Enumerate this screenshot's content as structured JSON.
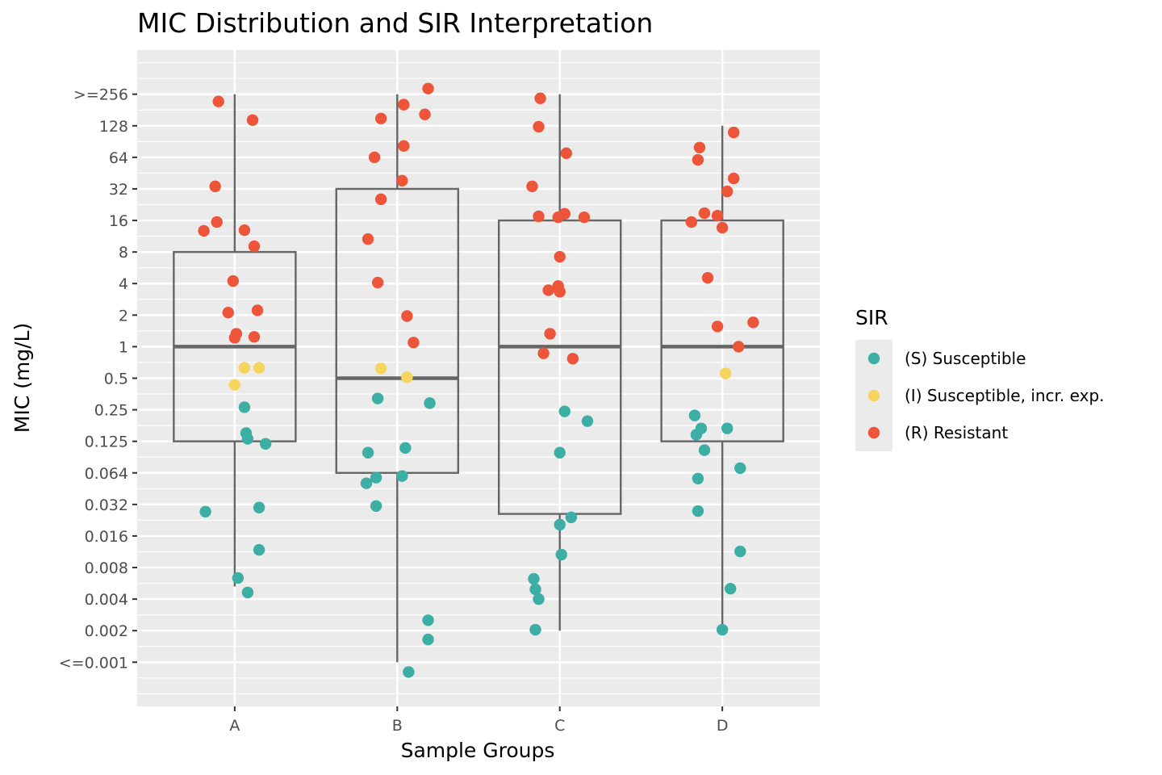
{
  "chart_data": {
    "type": "scatter",
    "subtype": "boxplot-with-jittered-points",
    "title": "MIC Distribution and SIR Interpretation",
    "xlabel": "Sample Groups",
    "ylabel": "MIC (mg/L)",
    "y_scale": "log2",
    "grid": true,
    "categories": [
      "A",
      "B",
      "C",
      "D"
    ],
    "y_ticks": [
      {
        "label": ">=256",
        "log2": 8
      },
      {
        "label": "128",
        "log2": 7
      },
      {
        "label": "64",
        "log2": 6
      },
      {
        "label": "32",
        "log2": 5
      },
      {
        "label": "16",
        "log2": 4
      },
      {
        "label": "8",
        "log2": 3
      },
      {
        "label": "4",
        "log2": 2
      },
      {
        "label": "2",
        "log2": 1
      },
      {
        "label": "1",
        "log2": 0
      },
      {
        "label": "0.5",
        "log2": -1
      },
      {
        "label": "0.25",
        "log2": -2
      },
      {
        "label": "0.125",
        "log2": -3
      },
      {
        "label": "0.064",
        "log2": -4
      },
      {
        "label": "0.032",
        "log2": -5
      },
      {
        "label": "0.016",
        "log2": -6
      },
      {
        "label": "0.008",
        "log2": -7
      },
      {
        "label": "0.004",
        "log2": -8
      },
      {
        "label": "0.002",
        "log2": -9
      },
      {
        "label": "<=0.001",
        "log2": -10
      }
    ],
    "y_range_log2": [
      -11.4,
      9.4
    ],
    "legend": {
      "title": "SIR",
      "position": "right",
      "entries": [
        {
          "key": "S",
          "label": "(S) Susceptible",
          "color": "#3CAEA3"
        },
        {
          "key": "I",
          "label": "(I) Susceptible, incr. exp.",
          "color": "#F6D55C"
        },
        {
          "key": "R",
          "label": "(R) Resistant",
          "color": "#ED553B"
        }
      ]
    },
    "boxes": [
      {
        "group": "A",
        "whisker_low": -7.6,
        "q1": -3,
        "median": 0,
        "q3": 3,
        "whisker_high": 8
      },
      {
        "group": "B",
        "whisker_low": -10,
        "q1": -4,
        "median": -1,
        "q3": 5,
        "whisker_high": 8
      },
      {
        "group": "C",
        "whisker_low": -9,
        "q1": -5.3,
        "median": 0,
        "q3": 4,
        "whisker_high": 8
      },
      {
        "group": "D",
        "whisker_low": -9,
        "q1": -3,
        "median": 0,
        "q3": 4,
        "whisker_high": 7
      }
    ],
    "points_note": "each point: [group_index, horizontal jitter in group-width units, log2(MIC), SIR class]",
    "points": [
      [
        0,
        -0.1,
        7.77,
        "R"
      ],
      [
        0,
        0.11,
        7.18,
        "R"
      ],
      [
        0,
        -0.12,
        5.08,
        "R"
      ],
      [
        0,
        -0.11,
        3.95,
        "R"
      ],
      [
        0,
        -0.19,
        3.67,
        "R"
      ],
      [
        0,
        0.06,
        3.69,
        "R"
      ],
      [
        0,
        0.12,
        3.18,
        "R"
      ],
      [
        0,
        -0.01,
        2.08,
        "R"
      ],
      [
        0,
        -0.04,
        1.08,
        "R"
      ],
      [
        0,
        0.14,
        1.15,
        "R"
      ],
      [
        0,
        0.01,
        0.41,
        "R"
      ],
      [
        0,
        0.0,
        0.28,
        "R"
      ],
      [
        0,
        0.12,
        0.31,
        "R"
      ],
      [
        0,
        0.06,
        -0.67,
        "I"
      ],
      [
        0,
        0.15,
        -0.67,
        "I"
      ],
      [
        0,
        0.0,
        -1.21,
        "I"
      ],
      [
        0,
        0.06,
        -1.92,
        "S"
      ],
      [
        0,
        0.07,
        -2.74,
        "S"
      ],
      [
        0,
        0.08,
        -2.92,
        "S"
      ],
      [
        0,
        0.19,
        -3.08,
        "S"
      ],
      [
        0,
        -0.18,
        -5.23,
        "S"
      ],
      [
        0,
        0.15,
        -5.1,
        "S"
      ],
      [
        0,
        0.15,
        -6.44,
        "S"
      ],
      [
        0,
        0.02,
        -7.33,
        "S"
      ],
      [
        0,
        0.08,
        -7.79,
        "S"
      ],
      [
        1,
        0.19,
        8.18,
        "R"
      ],
      [
        1,
        0.04,
        7.67,
        "R"
      ],
      [
        1,
        0.17,
        7.36,
        "R"
      ],
      [
        1,
        -0.1,
        7.23,
        "R"
      ],
      [
        1,
        0.04,
        6.36,
        "R"
      ],
      [
        1,
        -0.14,
        6.0,
        "R"
      ],
      [
        1,
        0.03,
        5.26,
        "R"
      ],
      [
        1,
        -0.1,
        4.67,
        "R"
      ],
      [
        1,
        -0.18,
        3.41,
        "R"
      ],
      [
        1,
        -0.12,
        2.03,
        "R"
      ],
      [
        1,
        0.06,
        0.97,
        "R"
      ],
      [
        1,
        0.1,
        0.13,
        "R"
      ],
      [
        1,
        -0.1,
        -0.69,
        "I"
      ],
      [
        1,
        0.06,
        -0.97,
        "I"
      ],
      [
        1,
        -0.12,
        -1.64,
        "S"
      ],
      [
        1,
        0.2,
        -1.79,
        "S"
      ],
      [
        1,
        -0.18,
        -3.36,
        "S"
      ],
      [
        1,
        0.05,
        -3.21,
        "S"
      ],
      [
        1,
        -0.13,
        -4.15,
        "S"
      ],
      [
        1,
        -0.19,
        -4.33,
        "S"
      ],
      [
        1,
        0.03,
        -4.1,
        "S"
      ],
      [
        1,
        -0.13,
        -5.05,
        "S"
      ],
      [
        1,
        0.19,
        -8.67,
        "S"
      ],
      [
        1,
        0.19,
        -9.28,
        "S"
      ],
      [
        1,
        0.07,
        -10.31,
        "S"
      ],
      [
        2,
        -0.12,
        7.87,
        "R"
      ],
      [
        2,
        -0.13,
        6.97,
        "R"
      ],
      [
        2,
        0.04,
        6.13,
        "R"
      ],
      [
        2,
        -0.17,
        5.08,
        "R"
      ],
      [
        2,
        -0.13,
        4.13,
        "R"
      ],
      [
        2,
        -0.01,
        4.1,
        "R"
      ],
      [
        2,
        0.03,
        4.21,
        "R"
      ],
      [
        2,
        0.15,
        4.1,
        "R"
      ],
      [
        2,
        0.0,
        2.85,
        "R"
      ],
      [
        2,
        -0.07,
        1.79,
        "R"
      ],
      [
        2,
        -0.01,
        1.92,
        "R"
      ],
      [
        2,
        0.0,
        1.74,
        "R"
      ],
      [
        2,
        -0.06,
        0.41,
        "R"
      ],
      [
        2,
        -0.1,
        -0.21,
        "R"
      ],
      [
        2,
        0.08,
        -0.38,
        "R"
      ],
      [
        2,
        0.03,
        -2.05,
        "S"
      ],
      [
        2,
        0.17,
        -2.36,
        "S"
      ],
      [
        2,
        0.0,
        -3.36,
        "S"
      ],
      [
        2,
        0.07,
        -5.41,
        "S"
      ],
      [
        2,
        0.0,
        -5.64,
        "S"
      ],
      [
        2,
        0.01,
        -6.59,
        "S"
      ],
      [
        2,
        -0.16,
        -7.36,
        "S"
      ],
      [
        2,
        -0.15,
        -7.69,
        "S"
      ],
      [
        2,
        -0.13,
        -8.0,
        "S"
      ],
      [
        2,
        -0.15,
        -8.97,
        "S"
      ],
      [
        3,
        0.07,
        6.79,
        "R"
      ],
      [
        3,
        -0.14,
        6.31,
        "R"
      ],
      [
        3,
        -0.15,
        5.92,
        "R"
      ],
      [
        3,
        0.07,
        5.33,
        "R"
      ],
      [
        3,
        0.03,
        4.92,
        "R"
      ],
      [
        3,
        -0.11,
        4.23,
        "R"
      ],
      [
        3,
        -0.03,
        4.15,
        "R"
      ],
      [
        3,
        -0.19,
        3.95,
        "R"
      ],
      [
        3,
        0.0,
        3.77,
        "R"
      ],
      [
        3,
        -0.09,
        2.18,
        "R"
      ],
      [
        3,
        -0.03,
        0.64,
        "R"
      ],
      [
        3,
        0.19,
        0.77,
        "R"
      ],
      [
        3,
        0.1,
        0.0,
        "R"
      ],
      [
        3,
        0.02,
        -0.85,
        "I"
      ],
      [
        3,
        -0.17,
        -2.18,
        "S"
      ],
      [
        3,
        -0.13,
        -2.59,
        "S"
      ],
      [
        3,
        -0.16,
        -2.79,
        "S"
      ],
      [
        3,
        0.03,
        -2.59,
        "S"
      ],
      [
        3,
        -0.11,
        -3.28,
        "S"
      ],
      [
        3,
        0.11,
        -3.85,
        "S"
      ],
      [
        3,
        -0.15,
        -4.18,
        "S"
      ],
      [
        3,
        -0.15,
        -5.21,
        "S"
      ],
      [
        3,
        0.11,
        -6.49,
        "S"
      ],
      [
        3,
        0.05,
        -7.67,
        "S"
      ],
      [
        3,
        0.0,
        -8.97,
        "S"
      ]
    ]
  }
}
